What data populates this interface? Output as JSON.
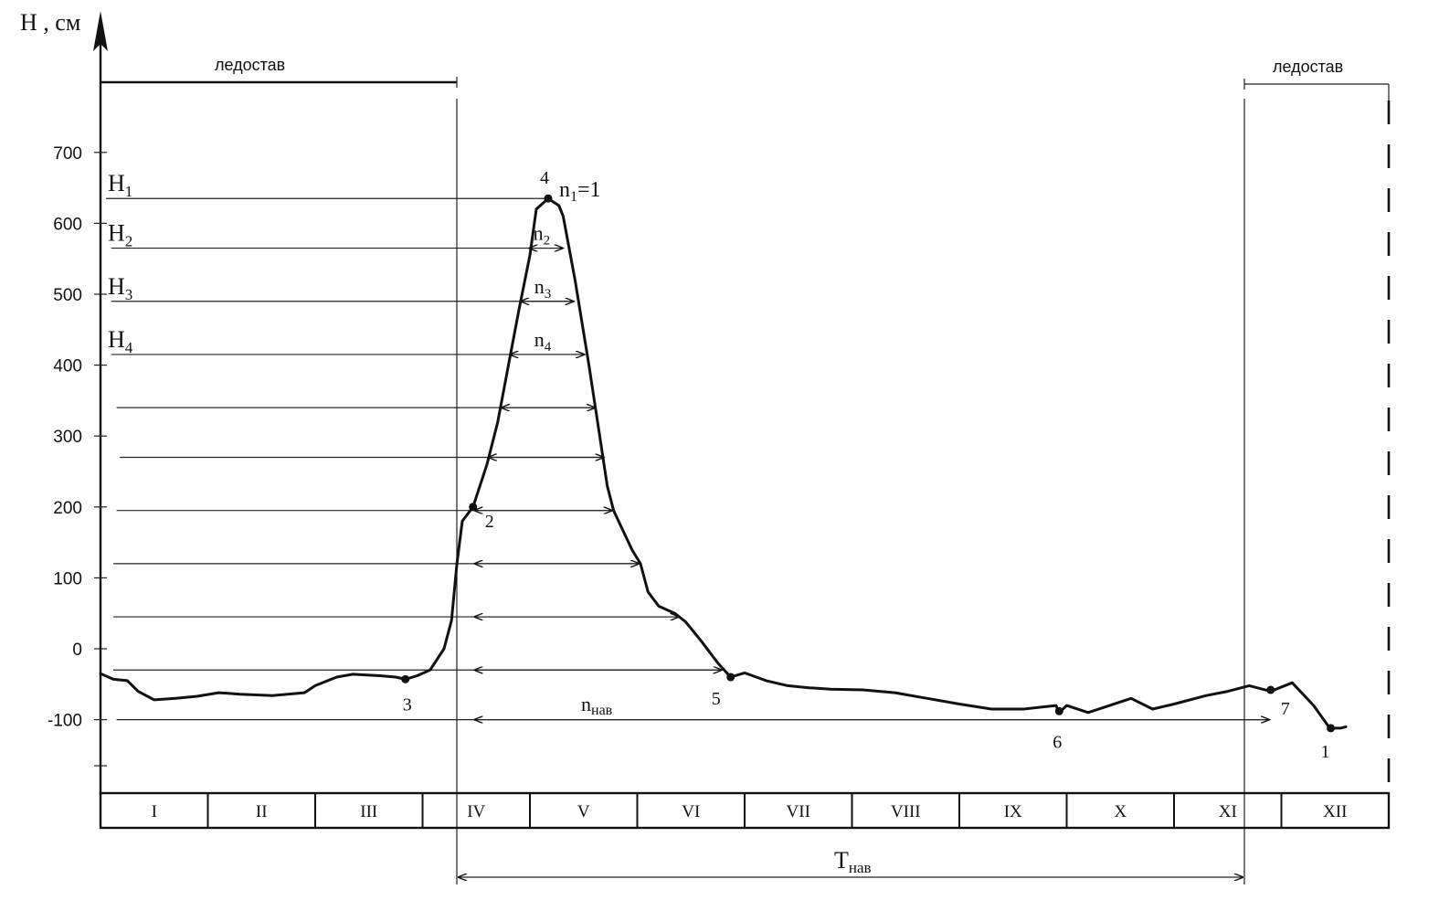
{
  "chart_data": {
    "type": "line",
    "ylabel": "H , см",
    "ylim": [
      -200,
      800
    ],
    "yticks": [
      -100,
      0,
      100,
      200,
      300,
      400,
      500,
      600,
      700
    ],
    "months": [
      "I",
      "II",
      "III",
      "IV",
      "V",
      "VI",
      "VII",
      "VIII",
      "IX",
      "X",
      "XI",
      "XII"
    ],
    "ice_label": "ледостав",
    "navigation_label": "T",
    "navigation_sub": "нав",
    "duration_label": "n",
    "duration_sub": "нав",
    "level_labels": [
      {
        "main": "H",
        "sub": "1",
        "value": 635
      },
      {
        "main": "H",
        "sub": "2",
        "value": 565
      },
      {
        "main": "H",
        "sub": "3",
        "value": 490
      },
      {
        "main": "H",
        "sub": "4",
        "value": 415
      }
    ],
    "peak_label": {
      "main": "n",
      "sub": "1",
      "tail": "=1"
    },
    "width_labels": [
      {
        "main": "n",
        "sub": "2"
      },
      {
        "main": "n",
        "sub": "3"
      },
      {
        "main": "n",
        "sub": "4"
      }
    ],
    "series": [
      {
        "values": [
          [
            0.0,
            -35
          ],
          [
            0.12,
            -43
          ],
          [
            0.25,
            -45
          ],
          [
            0.35,
            -60
          ],
          [
            0.5,
            -72
          ],
          [
            0.7,
            -70
          ],
          [
            0.9,
            -67
          ],
          [
            1.1,
            -62
          ],
          [
            1.3,
            -64
          ],
          [
            1.6,
            -66
          ],
          [
            1.9,
            -62
          ],
          [
            2.0,
            -52
          ],
          [
            2.2,
            -40
          ],
          [
            2.35,
            -36
          ],
          [
            2.6,
            -38
          ],
          [
            2.75,
            -40
          ],
          [
            2.84,
            -43
          ],
          [
            2.95,
            -38
          ],
          [
            3.07,
            -30
          ],
          [
            3.2,
            0
          ],
          [
            3.27,
            40
          ],
          [
            3.32,
            120
          ],
          [
            3.37,
            180
          ],
          [
            3.47,
            200
          ],
          [
            3.6,
            260
          ],
          [
            3.7,
            320
          ],
          [
            3.8,
            400
          ],
          [
            3.9,
            480
          ],
          [
            4.0,
            555
          ],
          [
            4.06,
            620
          ],
          [
            4.17,
            635
          ],
          [
            4.27,
            625
          ],
          [
            4.31,
            610
          ],
          [
            4.42,
            520
          ],
          [
            4.55,
            400
          ],
          [
            4.65,
            300
          ],
          [
            4.72,
            230
          ],
          [
            4.78,
            195
          ],
          [
            4.95,
            140
          ],
          [
            5.03,
            120
          ],
          [
            5.1,
            80
          ],
          [
            5.2,
            60
          ],
          [
            5.35,
            50
          ],
          [
            5.45,
            38
          ],
          [
            5.6,
            10
          ],
          [
            5.75,
            -20
          ],
          [
            5.87,
            -40
          ],
          [
            6.0,
            -34
          ],
          [
            6.2,
            -45
          ],
          [
            6.4,
            -52
          ],
          [
            6.6,
            -55
          ],
          [
            6.8,
            -57
          ],
          [
            7.1,
            -58
          ],
          [
            7.4,
            -62
          ],
          [
            7.7,
            -70
          ],
          [
            8.0,
            -78
          ],
          [
            8.3,
            -85
          ],
          [
            8.6,
            -85
          ],
          [
            8.9,
            -80
          ],
          [
            8.93,
            -90
          ],
          [
            9.0,
            -80
          ],
          [
            9.2,
            -90
          ],
          [
            9.4,
            -80
          ],
          [
            9.6,
            -70
          ],
          [
            9.8,
            -85
          ],
          [
            10.0,
            -78
          ],
          [
            10.3,
            -66
          ],
          [
            10.5,
            -60
          ],
          [
            10.7,
            -52
          ],
          [
            10.9,
            -60
          ],
          [
            11.1,
            -48
          ],
          [
            11.3,
            -80
          ],
          [
            11.45,
            -112
          ],
          [
            11.55,
            -112
          ],
          [
            11.6,
            -110
          ]
        ]
      }
    ],
    "points": [
      {
        "label": "1",
        "x": 11.46,
        "y": -112
      },
      {
        "label": "2",
        "x": 3.47,
        "y": 200
      },
      {
        "label": "3",
        "x": 2.84,
        "y": -43
      },
      {
        "label": "4",
        "x": 4.17,
        "y": 635
      },
      {
        "label": "5",
        "x": 5.87,
        "y": -40
      },
      {
        "label": "6",
        "x": 8.93,
        "y": -88
      },
      {
        "label": "7",
        "x": 10.9,
        "y": -58
      }
    ],
    "navigation_period": {
      "start": 3.47,
      "end": 10.9
    },
    "navigation_threshold": -100,
    "horizontal_levels": [
      {
        "y": 635,
        "x_start": 0.05,
        "x_end": 4.17,
        "cut_left": 3.98,
        "cut_right": 4.32
      },
      {
        "y": 565,
        "x_start": 0.1,
        "x_end": 4.32,
        "cut_left": 3.98,
        "cut_right": 4.32
      },
      {
        "y": 490,
        "x_start": 0.1,
        "x_end": 4.42,
        "cut_left": 3.9,
        "cut_right": 4.42
      },
      {
        "y": 415,
        "x_start": 0.1,
        "x_end": 4.52,
        "cut_left": 3.8,
        "cut_right": 4.52
      },
      {
        "y": 340,
        "x_start": 0.15,
        "x_end": 4.62,
        "cut_left": 3.72,
        "cut_right": 4.62
      },
      {
        "y": 270,
        "x_start": 0.18,
        "x_end": 4.7,
        "cut_left": 3.6,
        "cut_right": 4.7
      },
      {
        "y": 195,
        "x_start": 0.15,
        "x_end": 4.78,
        "cut_left": 3.47,
        "cut_right": 4.78
      },
      {
        "y": 120,
        "x_start": 0.12,
        "x_end": 5.03,
        "cut_left": 3.47,
        "cut_right": 5.03
      },
      {
        "y": 45,
        "x_start": 0.12,
        "x_end": 5.4,
        "cut_left": 3.47,
        "cut_right": 5.4
      },
      {
        "y": -30,
        "x_start": 0.12,
        "x_end": 5.8,
        "cut_left": 3.47,
        "cut_right": 5.8
      },
      {
        "y": -100,
        "x_start": 0.15,
        "x_end": 10.9,
        "cut_left": 3.47,
        "cut_right": 10.9
      }
    ]
  }
}
